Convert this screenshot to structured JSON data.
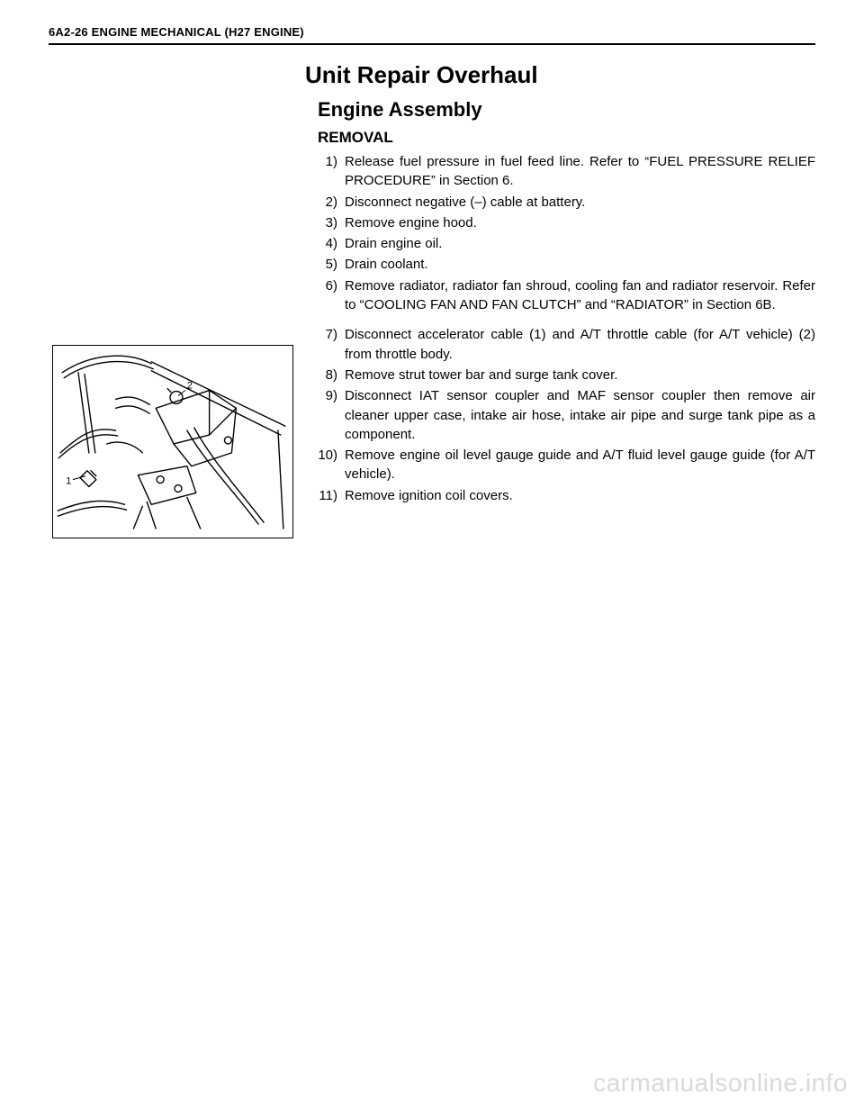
{
  "header": "6A2-26 ENGINE MECHANICAL (H27 ENGINE)",
  "title": "Unit Repair Overhaul",
  "subtitle": "Engine Assembly",
  "section": "REMOVAL",
  "steps_1": [
    {
      "n": "1)",
      "t": "Release fuel pressure in fuel feed line. Refer to “FUEL PRESSURE RELIEF PROCEDURE” in Section 6."
    },
    {
      "n": "2)",
      "t": "Disconnect negative (–) cable at battery."
    },
    {
      "n": "3)",
      "t": "Remove engine hood."
    },
    {
      "n": "4)",
      "t": "Drain engine oil."
    },
    {
      "n": "5)",
      "t": "Drain coolant."
    },
    {
      "n": "6)",
      "t": "Remove radiator, radiator fan shroud, cooling fan and radiator reservoir. Refer to “COOLING FAN AND FAN CLUTCH” and “RADIATOR” in Section 6B."
    }
  ],
  "steps_2": [
    {
      "n": "7)",
      "t": "Disconnect accelerator cable (1) and A/T throttle cable (for A/T vehicle) (2) from throttle body."
    },
    {
      "n": "8)",
      "t": "Remove strut tower bar and surge tank cover."
    },
    {
      "n": "9)",
      "t": "Disconnect IAT sensor coupler and MAF sensor coupler then remove air cleaner upper case, intake air hose, intake air pipe and surge tank pipe as a component."
    },
    {
      "n": "10)",
      "t": "Remove engine oil level gauge guide and A/T fluid level gauge guide (for A/T vehicle)."
    },
    {
      "n": "11)",
      "t": "Remove ignition coil covers."
    }
  ],
  "figure": {
    "labels": {
      "one": "1",
      "two": "2"
    }
  },
  "watermark": "carmanualsonline.info",
  "colors": {
    "text": "#000000",
    "background": "#ffffff",
    "watermark": "#d9d9d9",
    "rule": "#000000"
  },
  "typography": {
    "header_fontsize": 13,
    "title_fontsize": 26,
    "subtitle_fontsize": 22,
    "section_fontsize": 17,
    "body_fontsize": 15,
    "watermark_fontsize": 28
  }
}
